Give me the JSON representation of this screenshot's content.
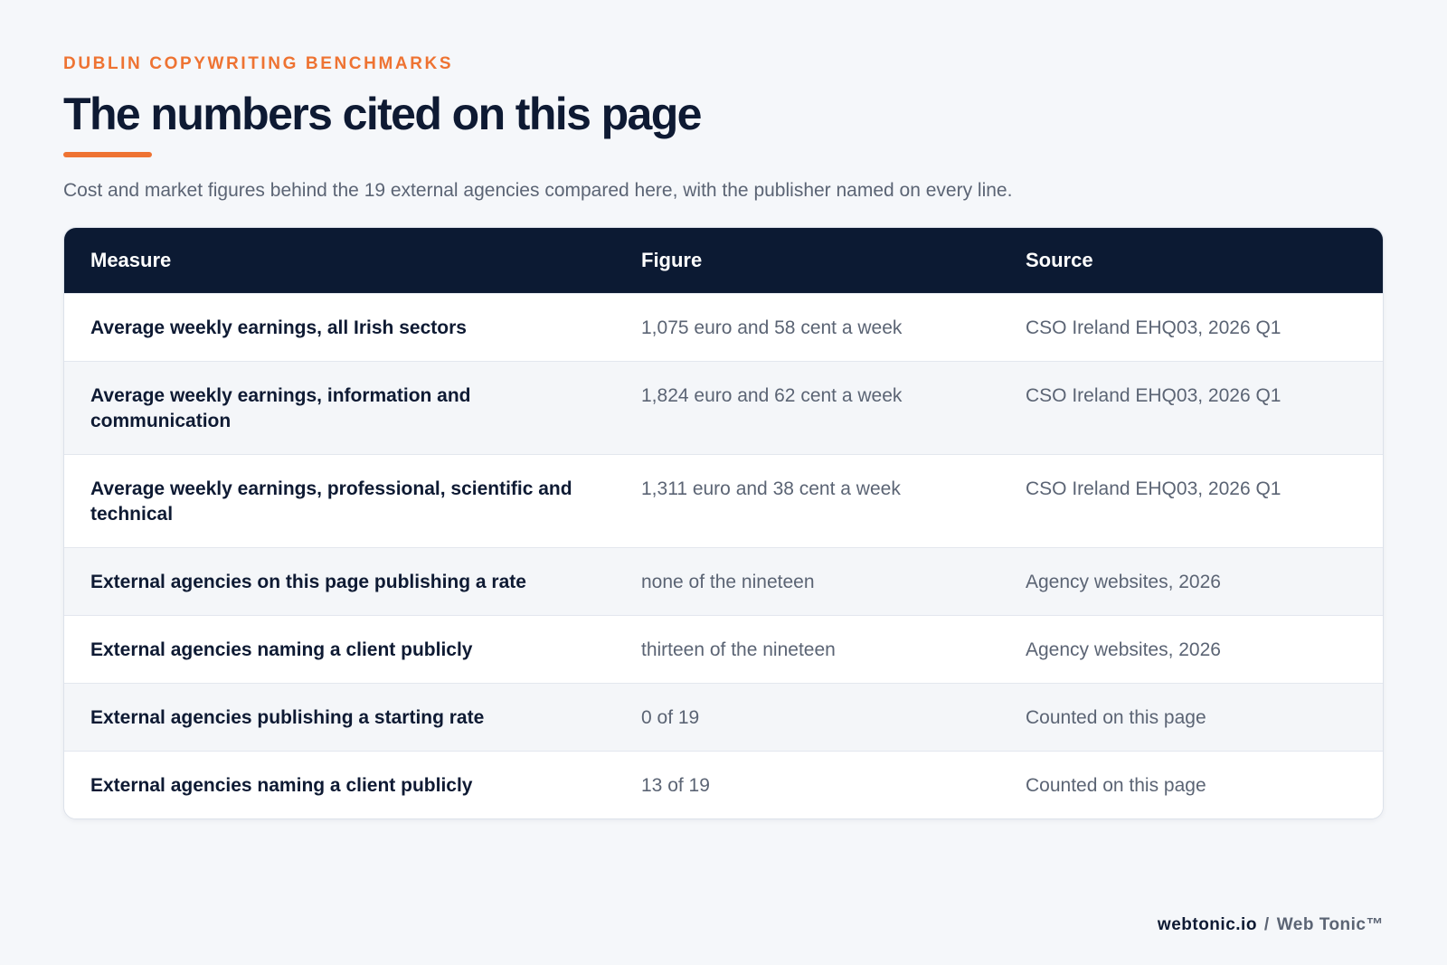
{
  "header": {
    "eyebrow": "DUBLIN COPYWRITING BENCHMARKS",
    "title": "The numbers cited on this page",
    "subtitle": "Cost and market figures behind the 19 external agencies compared here, with the publisher named on every line."
  },
  "table": {
    "columns": [
      "Measure",
      "Figure",
      "Source"
    ],
    "rows": [
      [
        "Average weekly earnings, all Irish sectors",
        "1,075 euro and 58 cent a week",
        "CSO Ireland EHQ03, 2026 Q1"
      ],
      [
        "Average weekly earnings, information and communication",
        "1,824 euro and 62 cent a week",
        "CSO Ireland EHQ03, 2026 Q1"
      ],
      [
        "Average weekly earnings, professional, scientific and technical",
        "1,311 euro and 38 cent a week",
        "CSO Ireland EHQ03, 2026 Q1"
      ],
      [
        "External agencies on this page publishing a rate",
        "none of the nineteen",
        "Agency websites, 2026"
      ],
      [
        "External agencies naming a client publicly",
        "thirteen of the nineteen",
        "Agency websites, 2026"
      ],
      [
        "External agencies publishing a starting rate",
        "0 of 19",
        "Counted on this page"
      ],
      [
        "External agencies naming a client publicly",
        "13 of 19",
        "Counted on this page"
      ]
    ]
  },
  "footer": {
    "site": "webtonic.io",
    "separator": "/",
    "brand": "Web Tonic™"
  },
  "colors": {
    "accent": "#ee7332",
    "header_bg": "#0c1a33",
    "text_dark": "#0e1a33",
    "text_muted": "#5b6474"
  }
}
